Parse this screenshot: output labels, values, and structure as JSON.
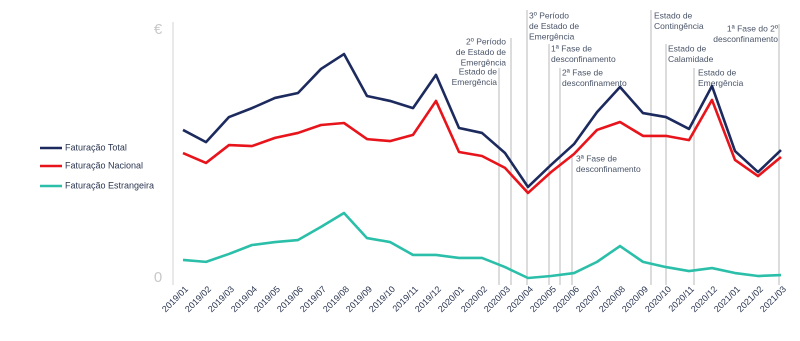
{
  "chart_data": {
    "type": "line",
    "categories": [
      "2019/01",
      "2019/02",
      "2019/03",
      "2019/04",
      "2019/05",
      "2019/06",
      "2019/07",
      "2019/08",
      "2019/09",
      "2019/10",
      "2019/11",
      "2019/12",
      "2020/01",
      "2020/02",
      "2020/03",
      "2020/04",
      "2020/05",
      "2020/06",
      "2020/07",
      "2020/08",
      "2020/09",
      "2020/10",
      "2020/11",
      "2020/12",
      "2021/01",
      "2021/02",
      "2021/03"
    ],
    "series": [
      {
        "name": "Faturação Total",
        "color": "#1c2a5e",
        "values": [
          59.7,
          54.8,
          64.9,
          68.5,
          72.6,
          74.6,
          84.3,
          90.3,
          73.4,
          71.4,
          68.5,
          81.9,
          60.5,
          58.5,
          50.4,
          36.7,
          45.6,
          54.0,
          66.9,
          77.0,
          66.5,
          64.9,
          60.1,
          77.4,
          51.2,
          42.7,
          51.6
        ]
      },
      {
        "name": "Faturação Nacional",
        "color": "#e8141b",
        "values": [
          50.4,
          46.4,
          53.6,
          53.2,
          56.5,
          58.5,
          61.7,
          62.5,
          56.0,
          55.2,
          57.7,
          71.4,
          50.8,
          49.2,
          44.4,
          34.3,
          42.7,
          50.0,
          59.7,
          62.9,
          57.3,
          57.3,
          55.6,
          71.8,
          47.6,
          41.1,
          48.8
        ]
      },
      {
        "name": "Faturação Estrangeira",
        "color": "#2bbfa9",
        "values": [
          7.3,
          6.5,
          9.7,
          13.3,
          14.5,
          15.3,
          20.6,
          26.2,
          16.1,
          14.5,
          9.3,
          9.3,
          8.1,
          8.1,
          4.4,
          0,
          0.8,
          2.0,
          6.5,
          12.9,
          6.5,
          4.4,
          2.8,
          4.0,
          2.0,
          0.8,
          1.2
        ]
      }
    ],
    "ylim": [
      0,
      100
    ],
    "yticks": [
      0,
      {
        "value": 100,
        "label": "€"
      }
    ],
    "annotations": [
      {
        "lines": [
          "Estado de",
          "Emergência"
        ]
      },
      {
        "lines": [
          "2º Período",
          "de Estado de",
          "Emergência"
        ]
      },
      {
        "lines": [
          "3º Período",
          "de Estado de",
          "Emergência"
        ]
      },
      {
        "lines": [
          "1ª Fase de",
          "desconfinamento"
        ]
      },
      {
        "lines": [
          "2ª Fase de",
          "desconfinamento"
        ]
      },
      {
        "lines": [
          "3ª Fase de",
          "desconfinamento"
        ]
      },
      {
        "lines": [
          "Estado de",
          "Contingência"
        ]
      },
      {
        "lines": [
          "Estado de",
          "Calamidade"
        ]
      },
      {
        "lines": [
          "Estado de",
          "Emergência"
        ]
      },
      {
        "lines": [
          "1ª Fase do 2º",
          "desconfinamento"
        ]
      }
    ]
  }
}
